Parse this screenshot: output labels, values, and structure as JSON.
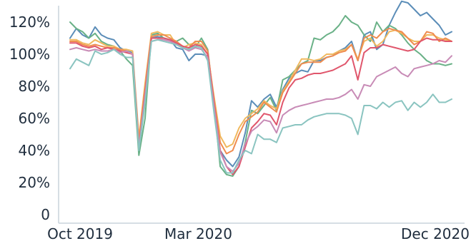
{
  "chart_data": {
    "type": "line",
    "title_fragment": "(… … … … …)",
    "xlabel": "",
    "ylabel": "",
    "x_ticks": [
      "Oct 2019",
      "Mar 2020",
      "Dec 2020"
    ],
    "x_range": [
      0,
      61
    ],
    "y_ticks": [
      "0",
      "20%",
      "40%",
      "60%",
      "80%",
      "100%",
      "120%"
    ],
    "ylim": [
      0,
      130
    ],
    "grid": false,
    "legend": "none",
    "series": [
      {
        "color": "#5b8db8",
        "values": [
          110,
          116,
          112,
          110,
          117,
          112,
          110,
          109,
          104,
          102,
          101,
          44,
          72,
          110,
          111,
          110,
          109,
          104,
          103,
          96,
          100,
          100,
          99,
          68,
          40,
          34,
          30,
          36,
          51,
          71,
          67,
          72,
          75,
          67,
          78,
          85,
          88,
          90,
          89,
          96,
          96,
          98,
          99,
          102,
          104,
          108,
          96,
          112,
          114,
          103,
          106,
          118,
          126,
          133,
          132,
          128,
          124,
          126,
          122,
          118,
          112,
          114
        ]
      },
      {
        "color": "#6ab187",
        "values": [
          120,
          116,
          114,
          110,
          113,
          108,
          106,
          105,
          102,
          97,
          93,
          37,
          60,
          112,
          113,
          110,
          109,
          108,
          110,
          106,
          104,
          110,
          103,
          70,
          30,
          25,
          24,
          30,
          45,
          65,
          63,
          68,
          73,
          65,
          84,
          86,
          90,
          94,
          96,
          110,
          109,
          112,
          114,
          118,
          124,
          120,
          118,
          112,
          108,
          120,
          114,
          118,
          116,
          112,
          107,
          103,
          100,
          96,
          94,
          94,
          93,
          94
        ]
      },
      {
        "color": "#f0b95f",
        "values": [
          109,
          109,
          107,
          106,
          109,
          107,
          105,
          105,
          103,
          103,
          102,
          48,
          82,
          113,
          114,
          112,
          112,
          106,
          104,
          106,
          107,
          106,
          100,
          74,
          49,
          42,
          44,
          54,
          60,
          63,
          66,
          71,
          68,
          66,
          77,
          83,
          90,
          97,
          97,
          96,
          97,
          100,
          100,
          102,
          103,
          106,
          97,
          108,
          110,
          105,
          108,
          114,
          115,
          113,
          110,
          108,
          108,
          112,
          112,
          110,
          109,
          108
        ]
      },
      {
        "color": "#ef8c4f",
        "values": [
          108,
          108,
          106,
          105,
          106,
          105,
          104,
          104,
          103,
          102,
          100,
          46,
          79,
          111,
          112,
          112,
          110,
          108,
          105,
          104,
          108,
          108,
          102,
          72,
          45,
          38,
          40,
          50,
          58,
          61,
          64,
          70,
          67,
          64,
          76,
          82,
          88,
          94,
          95,
          95,
          95,
          98,
          99,
          101,
          102,
          106,
          96,
          110,
          112,
          110,
          114,
          116,
          115,
          114,
          110,
          106,
          108,
          114,
          113,
          108,
          110,
          108
        ]
      },
      {
        "color": "#e0566c",
        "values": [
          107,
          107,
          105,
          104,
          105,
          103,
          104,
          103,
          102,
          101,
          100,
          42,
          76,
          110,
          110,
          110,
          109,
          107,
          105,
          104,
          106,
          105,
          100,
          70,
          40,
          30,
          25,
          30,
          42,
          54,
          58,
          63,
          62,
          56,
          70,
          79,
          84,
          85,
          87,
          88,
          88,
          89,
          90,
          92,
          94,
          99,
          84,
          101,
          104,
          104,
          106,
          105,
          104,
          103,
          102,
          103,
          108,
          110,
          109,
          109,
          108,
          108
        ]
      },
      {
        "color": "#c88bb6",
        "values": [
          103,
          104,
          103,
          102,
          103,
          102,
          102,
          103,
          101,
          102,
          100,
          42,
          74,
          108,
          109,
          109,
          108,
          106,
          104,
          102,
          104,
          103,
          98,
          68,
          39,
          30,
          27,
          32,
          44,
          52,
          55,
          59,
          58,
          51,
          62,
          65,
          67,
          68,
          69,
          70,
          71,
          72,
          72,
          73,
          75,
          78,
          72,
          81,
          80,
          86,
          88,
          90,
          92,
          88,
          86,
          91,
          92,
          93,
          94,
          96,
          95,
          99
        ]
      },
      {
        "color": "#8ac4c0",
        "values": [
          91,
          97,
          95,
          93,
          102,
          100,
          101,
          103,
          100,
          98,
          98,
          40,
          70,
          108,
          109,
          108,
          107,
          106,
          104,
          103,
          105,
          104,
          96,
          64,
          34,
          26,
          26,
          34,
          40,
          38,
          50,
          47,
          47,
          45,
          54,
          55,
          56,
          56,
          59,
          61,
          62,
          63,
          63,
          63,
          62,
          60,
          50,
          68,
          68,
          66,
          70,
          67,
          70,
          71,
          65,
          70,
          67,
          70,
          75,
          70,
          70,
          72
        ]
      }
    ]
  }
}
